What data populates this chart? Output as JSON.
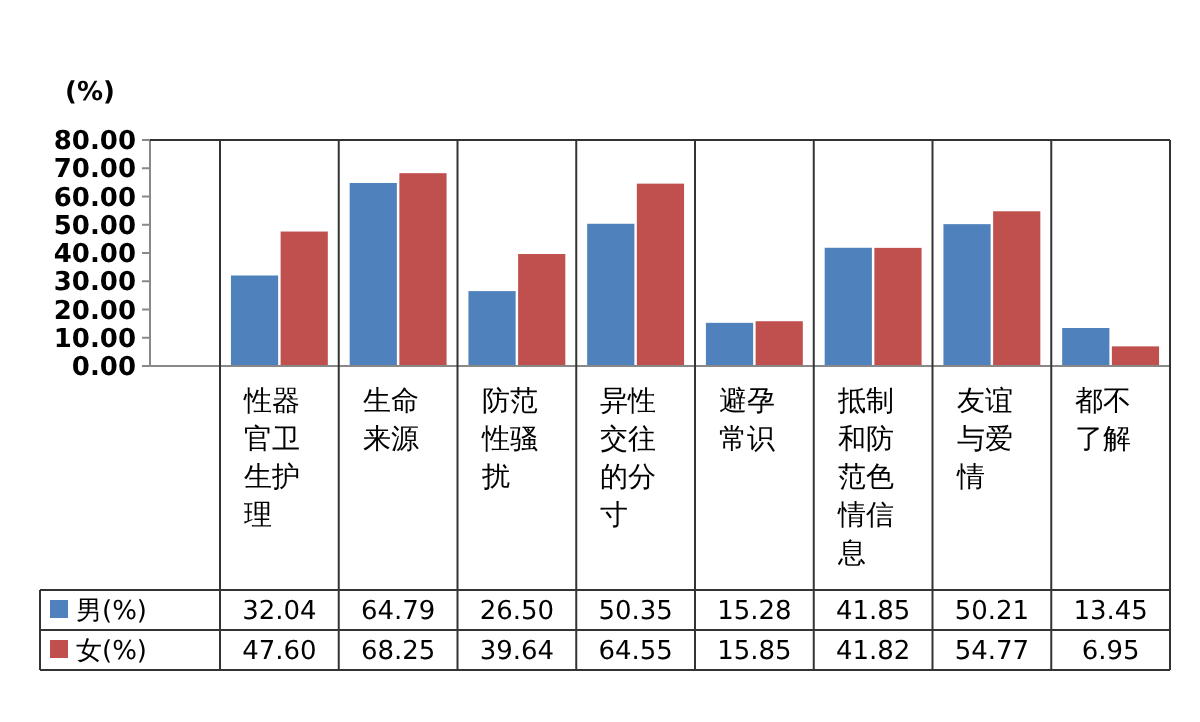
{
  "chart_data": {
    "type": "bar",
    "ylabel": "(%)",
    "categories": [
      "性器官卫生护理",
      "生命来源",
      "防范性骚扰",
      "异性交往的分寸",
      "避孕常识",
      "抵制和防范色情信息",
      "友谊与爱情",
      "都不了解"
    ],
    "series": [
      {
        "name": "男(%)",
        "color": "#4f81bd",
        "values": [
          32.04,
          64.79,
          26.5,
          50.35,
          15.28,
          41.85,
          50.21,
          13.45
        ],
        "value_labels": [
          "32.04",
          "64.79",
          "26.50",
          "50.35",
          "15.28",
          "41.85",
          "50.21",
          "13.45"
        ]
      },
      {
        "name": "女(%)",
        "color": "#c0504d",
        "values": [
          47.6,
          68.25,
          39.64,
          64.55,
          15.85,
          41.82,
          54.77,
          6.95
        ],
        "value_labels": [
          "47.60",
          "68.25",
          "39.64",
          "64.55",
          "15.85",
          "41.82",
          "54.77",
          "6.95"
        ]
      }
    ],
    "ylim": [
      0,
      80
    ],
    "yticks": [
      {
        "value": 0,
        "label": "0.00"
      },
      {
        "value": 10,
        "label": "10.00"
      },
      {
        "value": 20,
        "label": "20.00"
      },
      {
        "value": 30,
        "label": "30.00"
      },
      {
        "value": 40,
        "label": "40.00"
      },
      {
        "value": 50,
        "label": "50.00"
      },
      {
        "value": 60,
        "label": "60.00"
      },
      {
        "value": 70,
        "label": "70.00"
      },
      {
        "value": 80,
        "label": "80.00"
      }
    ],
    "grid": false,
    "legend": "bottom left"
  }
}
